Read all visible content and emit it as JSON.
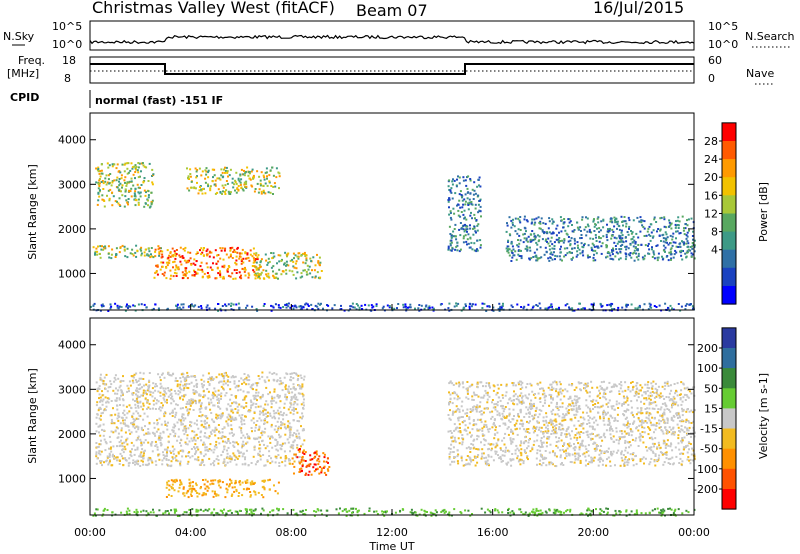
{
  "header": {
    "station": "Christmas Valley West (fitACF)",
    "beam": "Beam 07",
    "date": "16/Jul/2015"
  },
  "strip": {
    "nsky_label": "N.Sky",
    "nsky_ticks": [
      "10^5",
      "10^0"
    ],
    "nsearch_label": "N.Search",
    "freq_label_1": "Freq.",
    "freq_label_2": "[MHz]",
    "freq_ticks": [
      "18",
      "8"
    ],
    "nave_label": "Nave",
    "nave_ticks": [
      "60",
      "0"
    ],
    "cpid_label": "CPID",
    "cpid_value": "normal (fast) -151 IF"
  },
  "chart_data": [
    {
      "type": "heatmap",
      "panel": "power",
      "ylabel": "Slant Range [km]",
      "yticks": [
        1000,
        2000,
        3000,
        4000
      ],
      "ylim": [
        180,
        4600
      ],
      "xlim_hours": [
        0,
        24
      ],
      "colorbar": {
        "label": "Power [dB]",
        "ticks": [
          "28",
          "24",
          "20",
          "16",
          "12",
          "8",
          "4"
        ],
        "colors": [
          "#ff0000",
          "#ff5a00",
          "#ff9a00",
          "#f2c200",
          "#a8c838",
          "#58a860",
          "#3d9a86",
          "#2f70a6",
          "#1a42c0",
          "#0000ff"
        ]
      },
      "echo_regions": [
        {
          "t": [
            0.1,
            2.8
          ],
          "r": [
            1350,
            1650
          ],
          "level": "medium"
        },
        {
          "t": [
            0.2,
            2.5
          ],
          "r": [
            2500,
            3500
          ],
          "level": "medium"
        },
        {
          "t": [
            2.5,
            6.8
          ],
          "r": [
            900,
            1600
          ],
          "level": "high"
        },
        {
          "t": [
            3.8,
            7.5
          ],
          "r": [
            2800,
            3400
          ],
          "level": "medium"
        },
        {
          "t": [
            6.5,
            9.2
          ],
          "r": [
            900,
            1500
          ],
          "level": "medium"
        },
        {
          "t": [
            14.2,
            15.5
          ],
          "r": [
            1500,
            3200
          ],
          "level": "low"
        },
        {
          "t": [
            16.5,
            24.0
          ],
          "r": [
            1300,
            2300
          ],
          "level": "low"
        },
        {
          "t": [
            0.0,
            24.0
          ],
          "r": [
            180,
            350
          ],
          "level": "ground"
        }
      ]
    },
    {
      "type": "heatmap",
      "panel": "velocity",
      "ylabel": "Slant Range [km]",
      "yticks": [
        1000,
        2000,
        3000,
        4000
      ],
      "ylim": [
        180,
        4600
      ],
      "xlim_hours": [
        0,
        24
      ],
      "xlabel": "Time UT",
      "xticks": [
        "00:00",
        "04:00",
        "08:00",
        "12:00",
        "16:00",
        "20:00",
        "00:00"
      ],
      "colorbar": {
        "label": "Velocity [m s-1]",
        "ticks": [
          "200",
          "100",
          "50",
          "15",
          "-15",
          "-50",
          "-100",
          "-200"
        ],
        "colors": [
          "#2a3aa0",
          "#2f6e9e",
          "#3a8a3a",
          "#66cc33",
          "#c8c8c8",
          "#f2bb20",
          "#ff9000",
          "#ff5200",
          "#ff0000"
        ]
      },
      "echo_regions": [
        {
          "t": [
            0.2,
            8.5
          ],
          "r": [
            1300,
            3400
          ],
          "level": "near-zero"
        },
        {
          "t": [
            8.0,
            9.5
          ],
          "r": [
            1100,
            1700
          ],
          "level": "toward"
        },
        {
          "t": [
            3.0,
            7.5
          ],
          "r": [
            600,
            1000
          ],
          "level": "slow-toward"
        },
        {
          "t": [
            14.2,
            24.0
          ],
          "r": [
            1300,
            3200
          ],
          "level": "near-zero"
        },
        {
          "t": [
            0.0,
            24.0
          ],
          "r": [
            180,
            350
          ],
          "level": "positive-ground"
        }
      ]
    }
  ]
}
